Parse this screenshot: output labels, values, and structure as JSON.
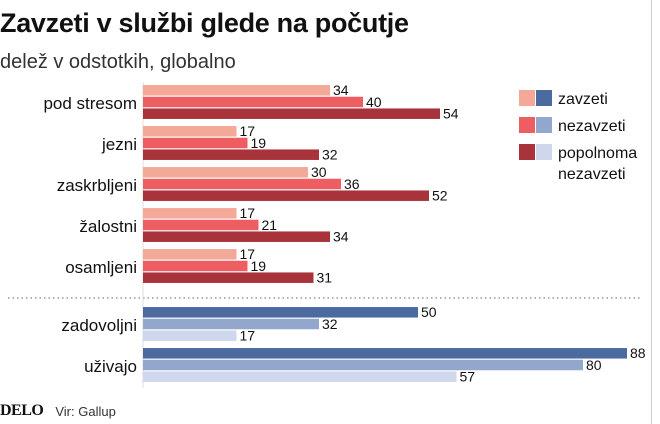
{
  "header": {
    "title": "Zavzeti v službi glede na počutje",
    "subtitle": "delež v odstotkih, globalno"
  },
  "footer": {
    "logo": "DELO",
    "source": "Vir: Gallup"
  },
  "legend": [
    {
      "label": "zavzeti",
      "warm_color": "#f4a898",
      "cool_color": "#4a6aa0"
    },
    {
      "label": "nezavzeti",
      "warm_color": "#ee5d62",
      "cool_color": "#93a6cc"
    },
    {
      "label": "popolnoma nezavzeti",
      "lines": [
        "popolnoma",
        "nezavzeti"
      ],
      "warm_color": "#a8333b",
      "cool_color": "#cfd7ec"
    }
  ],
  "chart_data": {
    "type": "bar",
    "orientation": "horizontal",
    "title": "Zavzeti v službi glede na počutje",
    "subtitle": "delež v odstotkih, globalno",
    "xlim": [
      0,
      100
    ],
    "categories": [
      "pod stresom",
      "jezni",
      "zaskrbljeni",
      "žalostni",
      "osamljeni",
      "zadovoljni",
      "uživajo"
    ],
    "groups": [
      "negative",
      "negative",
      "negative",
      "negative",
      "negative",
      "positive",
      "positive"
    ],
    "series": [
      {
        "name": "zavzeti",
        "values": [
          34,
          17,
          30,
          17,
          17,
          50,
          88
        ]
      },
      {
        "name": "nezavzeti",
        "values": [
          40,
          19,
          36,
          21,
          19,
          32,
          80
        ]
      },
      {
        "name": "popolnoma nezavzeti",
        "values": [
          54,
          32,
          52,
          34,
          31,
          17,
          57
        ]
      }
    ],
    "legend_position": "right",
    "grid": false,
    "separator": "dotted line between negative and positive groups"
  }
}
